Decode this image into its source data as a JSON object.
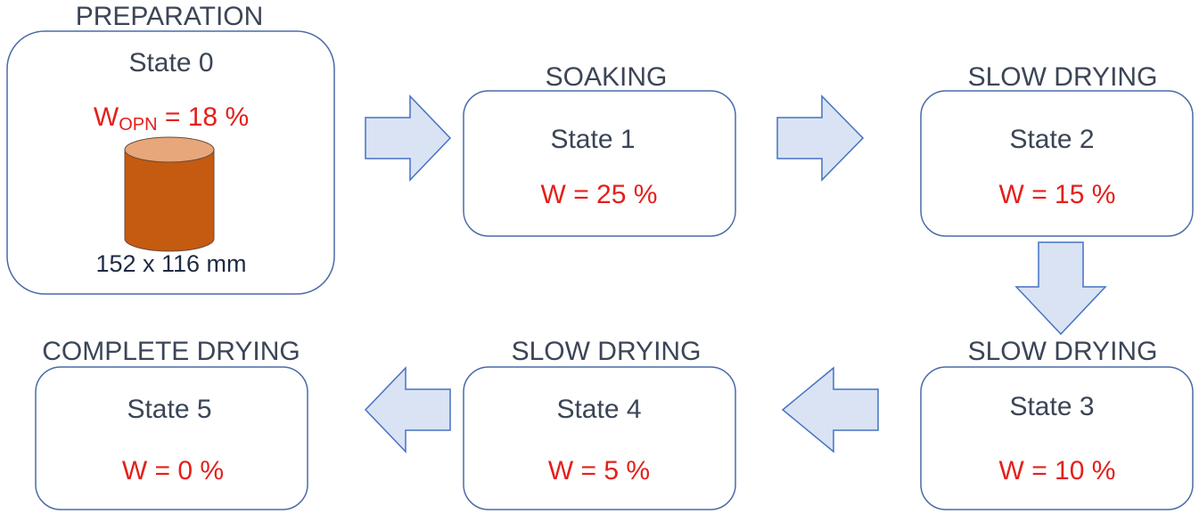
{
  "nodes": [
    {
      "phase": "PREPARATION",
      "state": "State 0",
      "moisture": {
        "symbol": "W",
        "subscript": "OPN",
        "rest": " = 18 %"
      },
      "size": "152 x 116 mm"
    },
    {
      "phase": "SOAKING",
      "state": "State 1",
      "moisture": "W = 25 %"
    },
    {
      "phase": "SLOW DRYING",
      "state": "State 2",
      "moisture": "W = 15 %"
    },
    {
      "phase": "SLOW DRYING",
      "state": "State 3",
      "moisture": "W = 10 %"
    },
    {
      "phase": "SLOW DRYING",
      "state": "State 4",
      "moisture": "W = 5 %"
    },
    {
      "phase": "COMPLETE DRYING",
      "state": "State 5",
      "moisture": "W = 0 %"
    }
  ]
}
